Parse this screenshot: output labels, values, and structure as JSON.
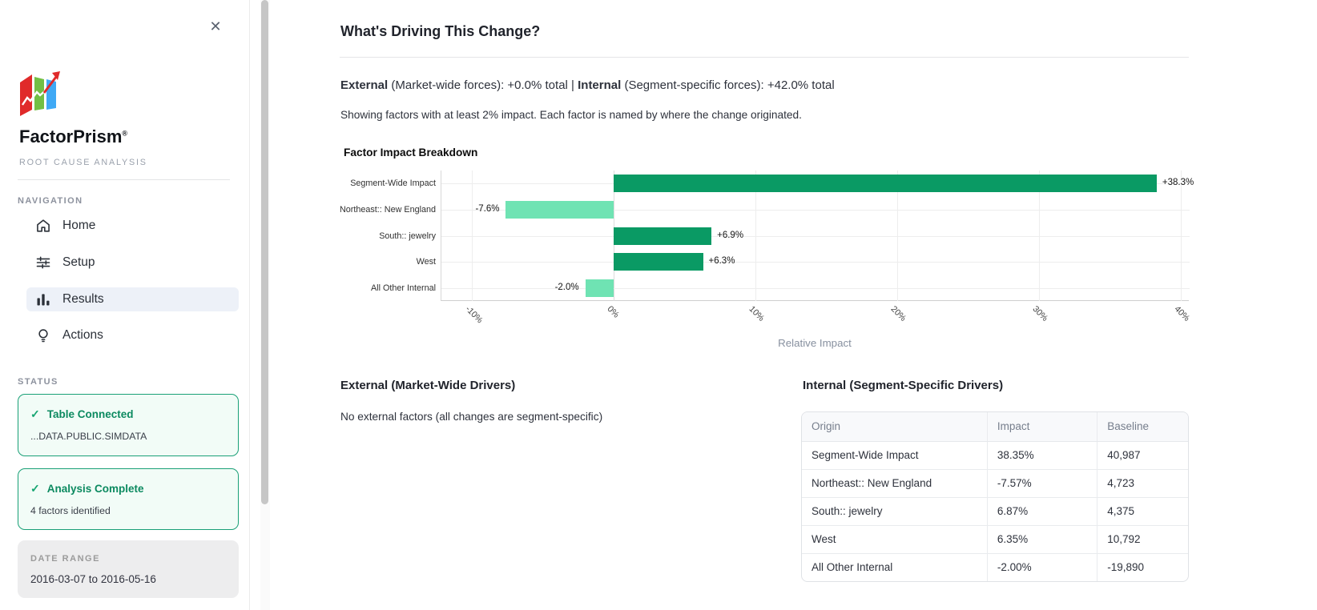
{
  "sidebar": {
    "close_label": "✕",
    "brand": {
      "name": "FactorPrism",
      "registered": "®",
      "tagline": "ROOT CAUSE ANALYSIS"
    },
    "nav_heading": "NAVIGATION",
    "nav": [
      {
        "label": "Home"
      },
      {
        "label": "Setup"
      },
      {
        "label": "Results"
      },
      {
        "label": "Actions"
      }
    ],
    "status_heading": "STATUS",
    "status_cards": [
      {
        "icon": "✓",
        "title": "Table Connected",
        "subtitle": "...DATA.PUBLIC.SIMDATA"
      },
      {
        "icon": "✓",
        "title": "Analysis Complete",
        "subtitle": "4 factors identified"
      }
    ],
    "date_range": {
      "label": "DATE RANGE",
      "value": "2016-03-07 to 2016-05-16"
    }
  },
  "main": {
    "title": "What's Driving This Change?",
    "summary": {
      "external_bold": "External",
      "external_text": " (Market-wide forces): +0.0% total",
      "separator": " | ",
      "internal_bold": "Internal",
      "internal_text": " (Segment-specific forces): +42.0% total"
    },
    "note": "Showing factors with at least 2% impact. Each factor is named by where the change originated.",
    "sections": {
      "external": {
        "title": "External (Market-Wide Drivers)",
        "empty_text": "No external factors (all changes are segment-specific)"
      },
      "internal": {
        "title": "Internal (Segment-Specific Drivers)"
      }
    }
  },
  "chart_data": {
    "type": "bar",
    "orientation": "horizontal",
    "title": "Factor Impact Breakdown",
    "categories": [
      "Segment-Wide Impact",
      "Northeast:: New England",
      "South:: jewelry",
      "West",
      "All Other Internal"
    ],
    "values": [
      38.3,
      -7.6,
      6.9,
      6.3,
      -2.0
    ],
    "value_labels": [
      "+38.3%",
      "-7.6%",
      "+6.9%",
      "+6.3%",
      "-2.0%"
    ],
    "xlabel": "Relative Impact",
    "x_ticks": [
      -10,
      0,
      10,
      20,
      30,
      40
    ],
    "x_tick_labels": [
      "-10%",
      "0%",
      "10%",
      "20%",
      "30%",
      "40%"
    ],
    "xlim": [
      -12,
      41
    ],
    "grid": true,
    "legend": "none",
    "colors": {
      "positive": "#0a9a64",
      "negative": "#6fe3b3"
    }
  },
  "internal_table": {
    "columns": [
      "Origin",
      "Impact",
      "Baseline"
    ],
    "rows": [
      [
        "Segment-Wide Impact",
        "38.35%",
        "40,987"
      ],
      [
        "Northeast:: New England",
        "-7.57%",
        "4,723"
      ],
      [
        "South:: jewelry",
        "6.87%",
        "4,375"
      ],
      [
        "West",
        "6.35%",
        "10,792"
      ],
      [
        "All Other Internal",
        "-2.00%",
        "-19,890"
      ]
    ]
  }
}
